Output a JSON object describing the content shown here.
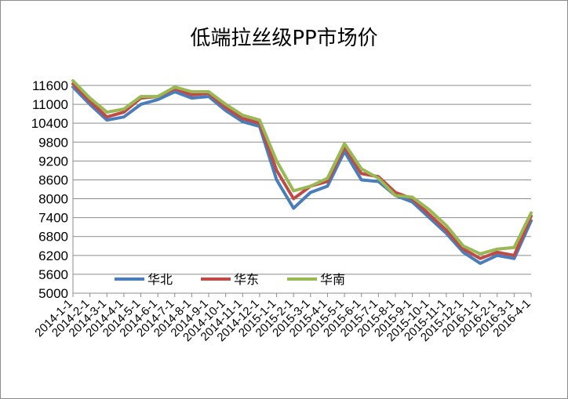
{
  "chart_data": {
    "type": "line",
    "title": "低端拉丝级PP市场价",
    "xlabel": "",
    "ylabel": "",
    "ylim": [
      5000,
      11600
    ],
    "yticks": [
      5000,
      5600,
      6200,
      6800,
      7400,
      8000,
      8600,
      9200,
      9800,
      10400,
      11000,
      11600
    ],
    "x": [
      "2014-1-1",
      "2014-2-1",
      "2014-3-1",
      "2014-4-1",
      "2014-5-1",
      "2014-6-1",
      "2014-7-1",
      "2014-8-1",
      "2014-9-1",
      "2014-10-1",
      "2014-11-1",
      "2014-12-1",
      "2015-1-1",
      "2015-2-1",
      "2015-3-1",
      "2015-4-1",
      "2015-5-1",
      "2015-6-1",
      "2015-7-1",
      "2015-8-1",
      "2015-9-1",
      "2015-10-1",
      "2015-11-1",
      "2015-12-1",
      "2016-1-1",
      "2016-2-1",
      "2016-3-1",
      "2016-4-1"
    ],
    "legend_position": "bottom-left-inside",
    "grid": true,
    "series": [
      {
        "name": "华北",
        "color": "#4a7ebb",
        "values": [
          11550,
          11000,
          10500,
          10600,
          11000,
          11150,
          11400,
          11200,
          11250,
          10800,
          10450,
          10300,
          8600,
          7700,
          8200,
          8400,
          9500,
          8600,
          8550,
          8100,
          7900,
          7400,
          6900,
          6300,
          5950,
          6200,
          6100,
          7300
        ]
      },
      {
        "name": "华东",
        "color": "#be4b48",
        "values": [
          11650,
          11100,
          10600,
          10750,
          11200,
          11250,
          11500,
          11300,
          11350,
          10900,
          10550,
          10400,
          8900,
          8000,
          8400,
          8550,
          9650,
          8800,
          8700,
          8200,
          8000,
          7500,
          7000,
          6400,
          6100,
          6300,
          6200,
          7450
        ]
      },
      {
        "name": "华南",
        "color": "#98b954",
        "values": [
          11750,
          11200,
          10750,
          10850,
          11250,
          11250,
          11550,
          11400,
          11400,
          11000,
          10650,
          10500,
          9200,
          8250,
          8400,
          8650,
          9750,
          8950,
          8650,
          8100,
          8050,
          7650,
          7150,
          6500,
          6250,
          6400,
          6450,
          7550
        ]
      }
    ]
  }
}
